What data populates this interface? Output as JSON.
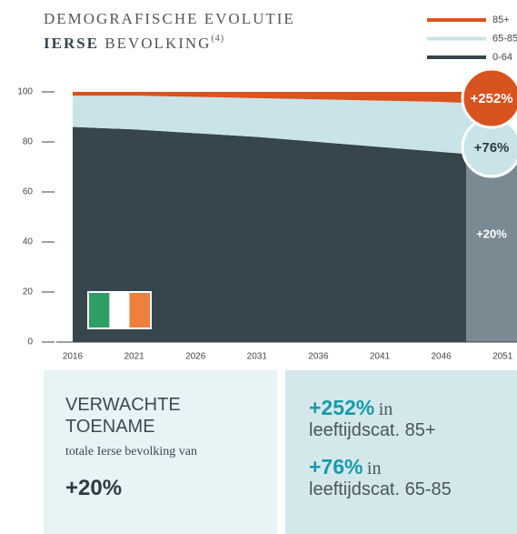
{
  "chart_data": {
    "type": "stacked_area",
    "title": "DEMOGRAFISCHE EVOLUTIE",
    "subtitle": {
      "bold": "IERSE",
      "rest": "BEVOLKING",
      "note": "(4)"
    },
    "categories": [
      "2016",
      "2021",
      "2026",
      "2031",
      "2036",
      "2041",
      "2046",
      "2051"
    ],
    "series": [
      {
        "name": "0-64",
        "color": "#37454d",
        "values": [
          86,
          85,
          83.5,
          82,
          80,
          78,
          76,
          74
        ]
      },
      {
        "name": "65-85",
        "color": "#c9e3e8",
        "values": [
          12.5,
          13.5,
          14.5,
          15.5,
          17,
          18.5,
          20,
          21
        ]
      },
      {
        "name": "85+",
        "color": "#d9531e",
        "values": [
          1.5,
          1.5,
          2,
          2.5,
          3,
          3.5,
          4,
          5
        ]
      }
    ],
    "ylim": [
      0,
      100
    ],
    "yticks": [
      0,
      20,
      40,
      60,
      80,
      100
    ],
    "annotations": [
      "+252%",
      "+76%",
      "+20%"
    ]
  },
  "info": {
    "left": {
      "heading": "VERWACHTE TOENAME",
      "text": "totale Ierse bevolking van",
      "value": "+20%"
    },
    "right": [
      {
        "value": "+252%",
        "word": "in",
        "text": "leeftijdscat. 85+"
      },
      {
        "value": "+76%",
        "word": "in",
        "text": "leeftijdscat. 65-85"
      }
    ]
  }
}
